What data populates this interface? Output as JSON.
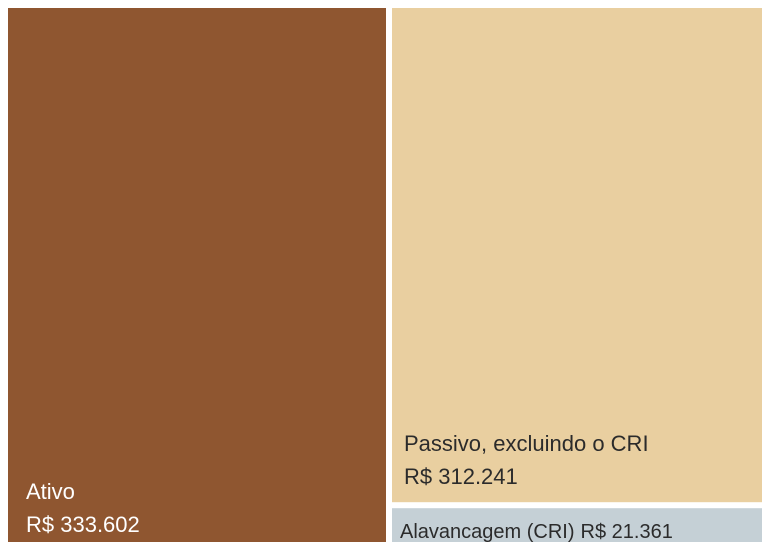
{
  "chart_data": {
    "type": "treemap",
    "categories": [
      "Ativo",
      "Passivo, excluindo o CRI",
      "Alavancagem (CRI)"
    ],
    "values": [
      333602,
      312241,
      21361
    ],
    "value_labels": [
      "R$ 333.602",
      "R$ 312.241",
      "R$ 21.361"
    ],
    "colors": [
      "#8f5630",
      "#e9cfa0",
      "#c5d0d6"
    ]
  }
}
